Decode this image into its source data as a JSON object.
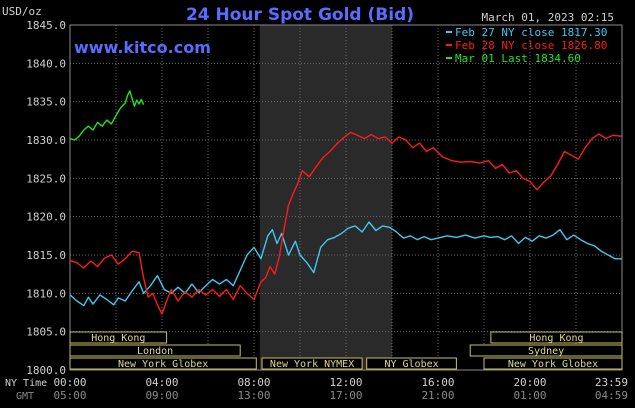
{
  "chart_data": {
    "type": "line",
    "title": "24 Hour Spot Gold (Bid)",
    "watermark": "www.kitco.com",
    "unit_label": "USD/oz",
    "datetime": "March 01, 2023 02:15",
    "ylim": [
      1800.0,
      1845.0
    ],
    "y_ticks": [
      "1845.0",
      "1840.0",
      "1835.0",
      "1830.0",
      "1825.0",
      "1820.0",
      "1815.0",
      "1810.0",
      "1805.0",
      "1800.0"
    ],
    "x_tick_row_label": "NY Time",
    "gmt_row_label": "GMT",
    "x_ticks": [
      "00:00",
      "04:00",
      "08:00",
      "12:00",
      "16:00",
      "20:00",
      "23:59"
    ],
    "gmt_ticks": [
      "05:00",
      "09:00",
      "13:00",
      "17:00",
      "21:00",
      "01:00",
      "04:59"
    ],
    "legend": [
      {
        "text": "Feb 27 NY close 1817.30",
        "color": "#3ec8f0"
      },
      {
        "text": "Feb 28 NY close 1826.80",
        "color": "#ff1a1a"
      },
      {
        "text": "Mar 01 Last 1834.60",
        "color": "#22e322"
      }
    ],
    "sessions": {
      "row1": [
        {
          "label": "Hong Kong"
        },
        {
          "label": "Hong Kong"
        }
      ],
      "row2": [
        {
          "label": "London"
        },
        {
          "label": "Sydney"
        }
      ],
      "row3": [
        {
          "label": "New York Globex"
        },
        {
          "label": "New York NYMEX"
        },
        {
          "label": "NY Globex"
        },
        {
          "label": "New York Globex"
        }
      ]
    },
    "series": [
      {
        "name": "Feb 27 NY close 1817.30",
        "color": "#3ec8f0",
        "x": [
          0,
          0.3,
          0.6,
          0.8,
          1.0,
          1.3,
          1.6,
          1.9,
          2.1,
          2.4,
          2.7,
          3.0,
          3.2,
          3.5,
          3.8,
          4.1,
          4.4,
          4.7,
          5.0,
          5.3,
          5.6,
          5.9,
          6.2,
          6.5,
          6.8,
          7.1,
          7.4,
          7.7,
          8.0,
          8.3,
          8.6,
          8.8,
          9.0,
          9.2,
          9.5,
          9.8,
          10.0,
          10.3,
          10.6,
          10.9,
          11.2,
          11.5,
          11.8,
          12.1,
          12.4,
          12.7,
          13.0,
          13.3,
          13.6,
          13.9,
          14.2,
          14.5,
          14.8,
          15.1,
          15.4,
          15.7,
          16.0,
          16.4,
          16.8,
          17.2,
          17.6,
          18.0,
          18.3,
          18.6,
          18.9,
          19.2,
          19.5,
          19.8,
          20.1,
          20.4,
          20.7,
          21.0,
          21.3,
          21.6,
          21.9,
          22.2,
          22.5,
          22.8,
          23.1,
          23.4,
          23.7,
          23.98
        ],
        "values": [
          1809.8,
          1809.0,
          1808.4,
          1809.5,
          1808.6,
          1809.8,
          1809.2,
          1808.5,
          1809.4,
          1809.0,
          1810.3,
          1811.5,
          1810.0,
          1811.0,
          1812.3,
          1810.5,
          1810.0,
          1810.8,
          1810.0,
          1811.2,
          1810.1,
          1811.0,
          1811.8,
          1811.2,
          1811.8,
          1811.0,
          1813.0,
          1815.0,
          1816.0,
          1814.5,
          1817.5,
          1818.3,
          1816.5,
          1817.8,
          1815.0,
          1816.8,
          1815.0,
          1814.0,
          1812.7,
          1816.0,
          1817.0,
          1817.3,
          1817.8,
          1818.5,
          1818.8,
          1818.0,
          1819.3,
          1818.2,
          1818.8,
          1818.6,
          1818.0,
          1817.2,
          1817.5,
          1817.0,
          1817.4,
          1817.0,
          1817.2,
          1817.5,
          1817.3,
          1817.6,
          1817.2,
          1817.5,
          1817.3,
          1817.4,
          1817.0,
          1817.5,
          1816.5,
          1817.3,
          1816.8,
          1817.5,
          1817.2,
          1817.6,
          1818.3,
          1817.0,
          1817.6,
          1817.0,
          1816.5,
          1816.2,
          1815.5,
          1815.0,
          1814.5,
          1814.5
        ]
      },
      {
        "name": "Feb 28 NY close 1826.80",
        "color": "#ff1a1a",
        "x": [
          0,
          0.3,
          0.6,
          0.9,
          1.2,
          1.5,
          1.8,
          2.1,
          2.4,
          2.7,
          3.0,
          3.2,
          3.4,
          3.6,
          3.8,
          4.0,
          4.2,
          4.4,
          4.7,
          5.0,
          5.3,
          5.6,
          5.9,
          6.2,
          6.5,
          6.8,
          7.1,
          7.4,
          7.7,
          8.0,
          8.3,
          8.5,
          8.7,
          8.9,
          9.1,
          9.3,
          9.5,
          9.7,
          9.9,
          10.1,
          10.4,
          10.7,
          11.0,
          11.3,
          11.6,
          11.9,
          12.2,
          12.5,
          12.8,
          13.1,
          13.4,
          13.7,
          14.0,
          14.3,
          14.6,
          14.9,
          15.2,
          15.5,
          15.8,
          16.2,
          16.6,
          17.0,
          17.4,
          17.8,
          18.2,
          18.5,
          18.8,
          19.1,
          19.4,
          19.7,
          20.0,
          20.3,
          20.6,
          20.9,
          21.2,
          21.5,
          21.8,
          22.1,
          22.4,
          22.7,
          23.0,
          23.3,
          23.6,
          23.98
        ],
        "values": [
          1814.3,
          1814.0,
          1813.3,
          1814.2,
          1813.5,
          1814.6,
          1815.0,
          1813.8,
          1814.5,
          1815.5,
          1815.3,
          1812.0,
          1809.5,
          1810.0,
          1808.5,
          1807.3,
          1809.0,
          1810.5,
          1809.0,
          1810.2,
          1809.5,
          1810.5,
          1809.8,
          1810.5,
          1809.6,
          1810.5,
          1809.2,
          1811.0,
          1810.0,
          1809.2,
          1811.5,
          1812.0,
          1813.5,
          1812.5,
          1814.8,
          1818.3,
          1821.5,
          1823.0,
          1824.3,
          1826.0,
          1825.2,
          1826.5,
          1827.7,
          1828.5,
          1829.5,
          1830.3,
          1831.0,
          1830.6,
          1830.2,
          1830.7,
          1830.2,
          1830.4,
          1829.6,
          1830.4,
          1830.0,
          1829.0,
          1829.6,
          1828.5,
          1829.0,
          1827.8,
          1827.3,
          1827.1,
          1827.2,
          1827.0,
          1827.3,
          1826.3,
          1826.8,
          1825.7,
          1826.0,
          1825.0,
          1824.6,
          1823.5,
          1824.5,
          1825.3,
          1826.8,
          1828.5,
          1828.0,
          1827.5,
          1829.0,
          1830.2,
          1830.8,
          1830.2,
          1830.6,
          1830.5
        ]
      },
      {
        "name": "Mar 01 Last 1834.60",
        "color": "#22e322",
        "x": [
          0,
          0.2,
          0.4,
          0.6,
          0.8,
          1.0,
          1.2,
          1.4,
          1.6,
          1.8,
          2.0,
          2.2,
          2.4,
          2.5,
          2.6,
          2.7,
          2.8,
          2.9,
          3.0,
          3.1,
          3.2
        ],
        "values": [
          1830.2,
          1830.0,
          1830.5,
          1831.3,
          1831.8,
          1831.3,
          1832.3,
          1831.8,
          1832.6,
          1832.1,
          1833.2,
          1834.2,
          1834.8,
          1835.8,
          1836.4,
          1835.4,
          1834.4,
          1835.2,
          1834.7,
          1835.3,
          1834.6
        ]
      }
    ]
  }
}
